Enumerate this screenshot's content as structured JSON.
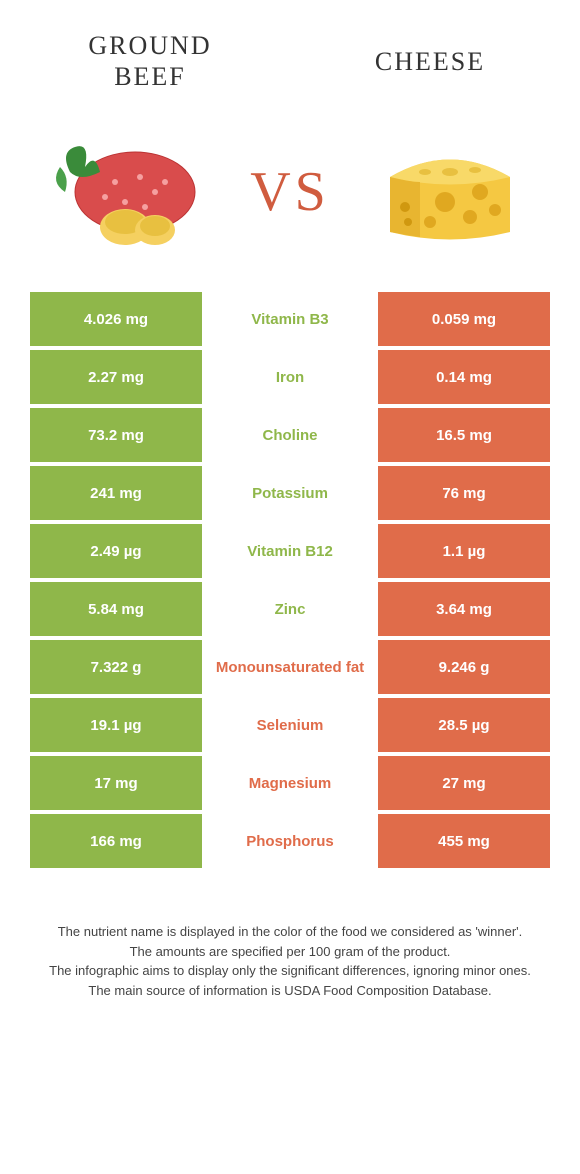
{
  "titles": {
    "left": "GROUND BEEF",
    "right": "CHEESE",
    "vs": "VS"
  },
  "colors": {
    "left_cell": "#8fb74a",
    "right_cell": "#e06c4a",
    "left_text": "#8fb74a",
    "right_text": "#e06c4a",
    "vs_text": "#d05c3f"
  },
  "rows": [
    {
      "left": "4.026 mg",
      "nutrient": "Vitamin B3",
      "right": "0.059 mg",
      "winner": "left"
    },
    {
      "left": "2.27 mg",
      "nutrient": "Iron",
      "right": "0.14 mg",
      "winner": "left"
    },
    {
      "left": "73.2 mg",
      "nutrient": "Choline",
      "right": "16.5 mg",
      "winner": "left"
    },
    {
      "left": "241 mg",
      "nutrient": "Potassium",
      "right": "76 mg",
      "winner": "left"
    },
    {
      "left": "2.49 µg",
      "nutrient": "Vitamin B12",
      "right": "1.1 µg",
      "winner": "left"
    },
    {
      "left": "5.84 mg",
      "nutrient": "Zinc",
      "right": "3.64 mg",
      "winner": "left"
    },
    {
      "left": "7.322 g",
      "nutrient": "Monounsaturated fat",
      "right": "9.246 g",
      "winner": "right"
    },
    {
      "left": "19.1 µg",
      "nutrient": "Selenium",
      "right": "28.5 µg",
      "winner": "right"
    },
    {
      "left": "17 mg",
      "nutrient": "Magnesium",
      "right": "27 mg",
      "winner": "right"
    },
    {
      "left": "166 mg",
      "nutrient": "Phosphorus",
      "right": "455 mg",
      "winner": "right"
    }
  ],
  "footer": {
    "line1": "The nutrient name is displayed in the color of the food we considered as 'winner'.",
    "line2": "The amounts are specified per 100 gram of the product.",
    "line3": "The infographic aims to display only the significant differences, ignoring minor ones.",
    "line4": "The main source of information is USDA Food Composition Database."
  }
}
